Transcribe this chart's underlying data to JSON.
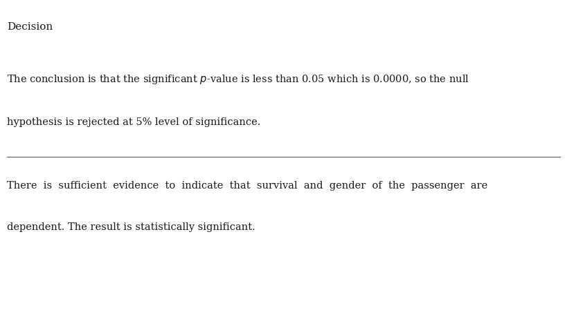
{
  "title": "Decision",
  "title_fontsize": 11,
  "para1_line1": "The conclusion is that the significant $p$-value is less than 0.05 which is 0.0000, so the null",
  "para1_line2": "hypothesis is rejected at 5% level of significance.",
  "para2_line1": "There  is  sufficient  evidence  to  indicate  that  survival  and  gender  of  the  passenger  are",
  "para2_line2": "dependent. The result is statistically significant.",
  "font_size": 10.5,
  "font_family": "serif",
  "text_color": "#1a1a1a",
  "bg_color": "#ffffff"
}
